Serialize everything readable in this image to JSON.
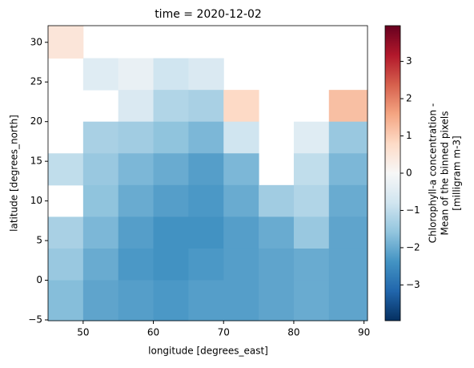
{
  "chart_data": {
    "type": "heatmap",
    "title": "time = 2020-12-02",
    "x_label": "longitude [degrees_east]",
    "y_label": "latitude [degrees_north]",
    "colorbar_label": [
      "Chlorophyll-a concentration -",
      "Mean of the binned pixels",
      "[milligram m-3]"
    ],
    "x_edges": [
      45,
      50,
      55,
      60,
      65,
      70,
      75,
      80,
      85,
      90.5
    ],
    "y_edges": [
      32.1,
      28,
      24,
      20,
      16,
      12,
      8,
      4,
      0,
      -5.1
    ],
    "values": [
      [
        0.5,
        null,
        null,
        null,
        null,
        null,
        null,
        null,
        null
      ],
      [
        null,
        -0.5,
        -0.3,
        -0.8,
        -0.6,
        null,
        null,
        null,
        null
      ],
      [
        null,
        null,
        -0.6,
        -1.2,
        -1.3,
        0.8,
        null,
        null,
        1.2
      ],
      [
        null,
        -1.3,
        -1.4,
        -1.6,
        -1.8,
        -0.8,
        null,
        -0.5,
        -1.5
      ],
      [
        -1.0,
        -1.5,
        -1.8,
        -2.0,
        -2.2,
        -1.8,
        null,
        -1.0,
        -1.8
      ],
      [
        null,
        -1.6,
        -2.0,
        -2.2,
        -2.3,
        -2.0,
        -1.4,
        -1.2,
        -2.0
      ],
      [
        -1.3,
        -1.8,
        -2.2,
        -2.4,
        -2.4,
        -2.2,
        -2.0,
        -1.5,
        -2.1
      ],
      [
        -1.5,
        -2.0,
        -2.3,
        -2.4,
        -2.3,
        -2.2,
        -2.1,
        -2.0,
        -2.1
      ],
      [
        -1.7,
        -2.1,
        -2.2,
        -2.3,
        -2.2,
        -2.2,
        -2.1,
        -2.0,
        -2.1
      ]
    ],
    "xlim": [
      45,
      90.5
    ],
    "ylim": [
      -5.1,
      32.1
    ],
    "xticks": [
      50,
      60,
      70,
      80,
      90
    ],
    "yticks": [
      {
        "value": -5,
        "label": "−5"
      },
      0,
      5,
      10,
      15,
      20,
      25,
      30
    ],
    "clim": [
      -3.96,
      3.96
    ],
    "cticks": [
      {
        "value": -3,
        "label": "−3"
      },
      {
        "value": -2,
        "label": "−2"
      },
      {
        "value": -1,
        "label": "−1"
      },
      0,
      1,
      2,
      3
    ],
    "colormap": [
      "#053061",
      "#2166ac",
      "#4393c3",
      "#92c5de",
      "#d1e5f0",
      "#f7f7f7",
      "#fddbc7",
      "#f4a582",
      "#d6604d",
      "#b2182b",
      "#67001f"
    ]
  }
}
